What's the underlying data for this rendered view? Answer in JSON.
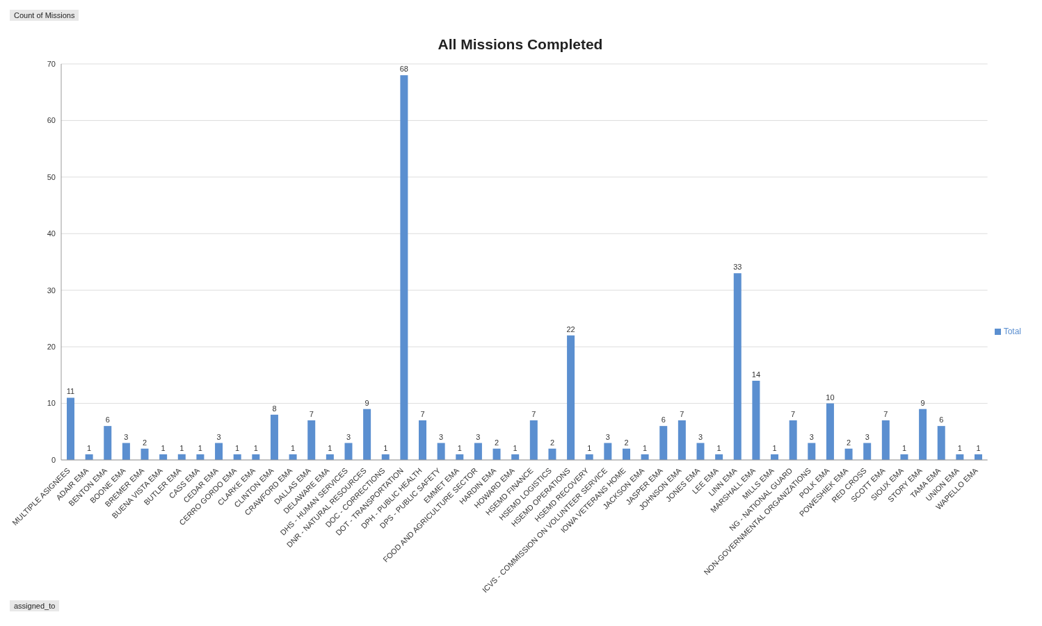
{
  "chart_data": {
    "type": "bar",
    "title": "All Missions Completed",
    "ylabel": null,
    "annotations": [
      "Count of Missions",
      "assigned_to"
    ],
    "categories": [
      "MULTIPLE ASIGNEES",
      "ADAIR EMA",
      "BENTON EMA",
      "BOONE EMA",
      "BREMER EMA",
      "BUENA VISTA EMA",
      "BUTLER EMA",
      "CASS EMA",
      "CEDAR EMA",
      "CERRO GORDO EMA",
      "CLARKE EMA",
      "CLINTON EMA",
      "CRAWFORD EMA",
      "DALLAS EMA",
      "DELAWARE EMA",
      "DHS - HUMAN SERVICES",
      "DNR - NATURAL RESOURCES",
      "DOC - CORRECTIONS",
      "DOT - TRANSPORTATION",
      "DPH - PUBLIC HEALTH",
      "DPS - PUBLIC SAFETY",
      "EMMET EMA",
      "FOOD AND AGRICULTURE SECTOR",
      "HARDIN EMA",
      "HOWARD EMA",
      "HSEMD FINANCE",
      "HSEMD LOGISTICS",
      "HSEMD OPERATIONS",
      "HSEMD RECOVERY",
      "ICVS - COMMISSION ON VOLUNTEER SERVICE",
      "IOWA VETERANS HOME",
      "JACKSON EMA",
      "JASPER EMA",
      "JOHNSON EMA",
      "JONES EMA",
      "LEE EMA",
      "LINN EMA",
      "MARSHALL EMA",
      "MILLS EMA",
      "NG - NATIONAL GUARD",
      "NON-GOVERNMENTAL ORGANIZATIONS",
      "POLK EMA",
      "POWESHIEK EMA",
      "RED CROSS",
      "SCOTT EMA",
      "SIOUX EMA",
      "STORY EMA",
      "TAMA EMA",
      "UNION EMA",
      "WAPELLO EMA"
    ],
    "series": [
      {
        "name": "Total",
        "color": "#5b8fd0",
        "values": [
          11,
          1,
          6,
          3,
          2,
          1,
          1,
          1,
          3,
          1,
          1,
          8,
          1,
          7,
          1,
          3,
          9,
          1,
          68,
          7,
          3,
          1,
          3,
          2,
          1,
          7,
          2,
          22,
          1,
          3,
          2,
          1,
          6,
          7,
          3,
          1,
          33,
          14,
          1,
          7,
          3,
          10,
          2,
          3,
          7,
          1,
          9,
          6,
          1,
          1
        ]
      }
    ],
    "ylim": [
      0,
      70
    ],
    "yticks": [
      0,
      10,
      20,
      30,
      40,
      50,
      60,
      70
    ],
    "grid": "y",
    "legend": "right",
    "data_labels": true
  }
}
